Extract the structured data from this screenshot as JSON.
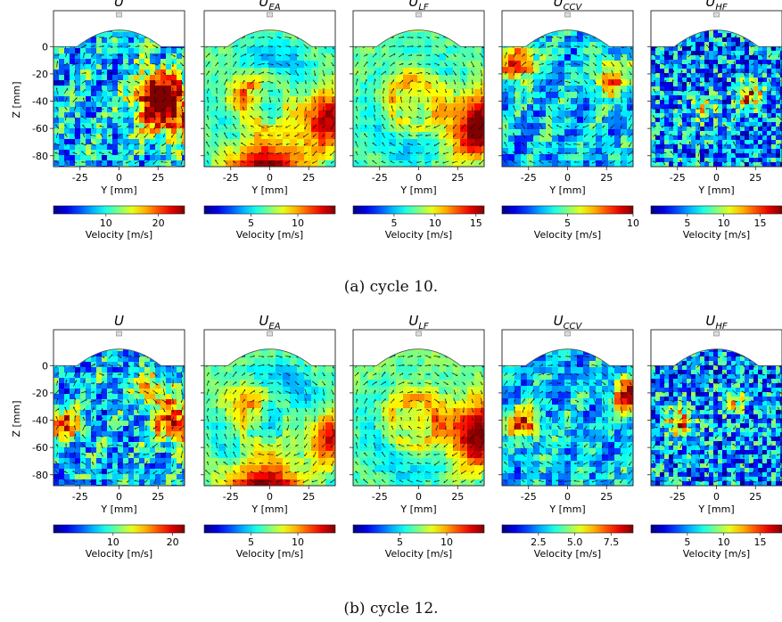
{
  "figure": {
    "caption_a": "(a) cycle 10.",
    "caption_b": "(b) cycle 12."
  },
  "chart_data": [
    {
      "type": "heatmap",
      "cycle": "10",
      "title_main": "U",
      "title_sub": "",
      "xlabel": "Y [mm]",
      "ylabel": "Z [mm]",
      "xticks": [
        -25,
        0,
        25
      ],
      "yticks": [
        0,
        -20,
        -40,
        -60,
        -80
      ],
      "xlim": [
        -42,
        42
      ],
      "ylim": [
        -88,
        10
      ],
      "colorbar_label": "Velocity [m/s]",
      "colorbar_ticks": [
        "10",
        "20"
      ],
      "colorbar_range": [
        0,
        25
      ],
      "pattern": "turbulent",
      "hotspots": [
        [
          30,
          -45,
          14,
          1.0
        ],
        [
          22,
          -30,
          10,
          0.8
        ]
      ]
    },
    {
      "type": "heatmap",
      "cycle": "10",
      "title_main": "U",
      "title_sub": "EA",
      "xlabel": "Y [mm]",
      "ylabel": "",
      "xticks": [
        -25,
        0,
        25
      ],
      "yticks": [
        0,
        -20,
        -40,
        -60,
        -80
      ],
      "xlim": [
        -42,
        42
      ],
      "ylim": [
        -88,
        10
      ],
      "colorbar_label": "Velocity [m/s]",
      "colorbar_ticks": [
        "5",
        "10"
      ],
      "colorbar_range": [
        0,
        14
      ],
      "pattern": "smooth",
      "hotspots": [
        [
          -5,
          -84,
          16,
          1.0
        ],
        [
          32,
          -50,
          14,
          0.9
        ],
        [
          -20,
          -30,
          12,
          0.6
        ]
      ]
    },
    {
      "type": "heatmap",
      "cycle": "10",
      "title_main": "U",
      "title_sub": "LF",
      "xlabel": "Y [mm]",
      "ylabel": "",
      "xticks": [
        -25,
        0,
        25
      ],
      "yticks": [
        0,
        -20,
        -40,
        -60,
        -80
      ],
      "xlim": [
        -42,
        42
      ],
      "ylim": [
        -88,
        10
      ],
      "colorbar_label": "Velocity [m/s]",
      "colorbar_ticks": [
        "5",
        "10",
        "15"
      ],
      "colorbar_range": [
        0,
        16
      ],
      "pattern": "smooth",
      "hotspots": [
        [
          35,
          -55,
          16,
          1.0
        ],
        [
          -10,
          -30,
          18,
          0.5
        ]
      ]
    },
    {
      "type": "heatmap",
      "cycle": "10",
      "title_main": "U",
      "title_sub": "CCV",
      "xlabel": "Y [mm]",
      "ylabel": "",
      "xticks": [
        -25,
        0,
        25
      ],
      "yticks": [
        0,
        -20,
        -40,
        -60,
        -80
      ],
      "xlim": [
        -42,
        42
      ],
      "ylim": [
        -88,
        10
      ],
      "colorbar_label": "Velocity [m/s]",
      "colorbar_ticks": [
        "5",
        "10"
      ],
      "colorbar_range": [
        0,
        10
      ],
      "pattern": "mixed",
      "hotspots": [
        [
          -35,
          -10,
          8,
          1.0
        ],
        [
          25,
          -20,
          8,
          0.7
        ]
      ]
    },
    {
      "type": "heatmap",
      "cycle": "10",
      "title_main": "U",
      "title_sub": "HF",
      "xlabel": "Y [mm]",
      "ylabel": "",
      "xticks": [
        -25,
        0,
        25
      ],
      "yticks": [
        0,
        -20,
        -40,
        -60,
        -80
      ],
      "xlim": [
        -42,
        42
      ],
      "ylim": [
        -88,
        10
      ],
      "colorbar_label": "Velocity [m/s]",
      "colorbar_ticks": [
        "5",
        "10",
        "15"
      ],
      "colorbar_range": [
        0,
        18
      ],
      "pattern": "noise",
      "hotspots": [
        [
          20,
          -35,
          6,
          0.9
        ],
        [
          -10,
          -45,
          5,
          0.6
        ]
      ]
    },
    {
      "type": "heatmap",
      "cycle": "12",
      "title_main": "U",
      "title_sub": "",
      "xlabel": "Y [mm]",
      "ylabel": "Z [mm]",
      "xticks": [
        -25,
        0,
        25
      ],
      "yticks": [
        0,
        -20,
        -40,
        -60,
        -80
      ],
      "xlim": [
        -42,
        42
      ],
      "ylim": [
        -88,
        10
      ],
      "colorbar_label": "Velocity [m/s]",
      "colorbar_ticks": [
        "10",
        "20"
      ],
      "colorbar_range": [
        0,
        22
      ],
      "pattern": "turbulent",
      "hotspots": [
        [
          35,
          -40,
          10,
          1.0
        ],
        [
          -38,
          -40,
          8,
          0.8
        ],
        [
          20,
          -15,
          8,
          0.6
        ]
      ]
    },
    {
      "type": "heatmap",
      "cycle": "12",
      "title_main": "U",
      "title_sub": "EA",
      "xlabel": "Y [mm]",
      "ylabel": "",
      "xticks": [
        -25,
        0,
        25
      ],
      "yticks": [
        0,
        -20,
        -40,
        -60,
        -80
      ],
      "xlim": [
        -42,
        42
      ],
      "ylim": [
        -88,
        10
      ],
      "colorbar_label": "Velocity [m/s]",
      "colorbar_ticks": [
        "5",
        "10"
      ],
      "colorbar_range": [
        0,
        14
      ],
      "pattern": "smooth",
      "hotspots": [
        [
          -5,
          -85,
          16,
          1.0
        ],
        [
          35,
          -50,
          12,
          0.8
        ],
        [
          -20,
          -25,
          12,
          0.6
        ]
      ]
    },
    {
      "type": "heatmap",
      "cycle": "12",
      "title_main": "U",
      "title_sub": "LF",
      "xlabel": "Y [mm]",
      "ylabel": "",
      "xticks": [
        -25,
        0,
        25
      ],
      "yticks": [
        0,
        -20,
        -40,
        -60,
        -80
      ],
      "xlim": [
        -42,
        42
      ],
      "ylim": [
        -88,
        10
      ],
      "colorbar_label": "Velocity [m/s]",
      "colorbar_ticks": [
        "5",
        "10"
      ],
      "colorbar_range": [
        0,
        14
      ],
      "pattern": "smooth",
      "hotspots": [
        [
          35,
          -48,
          15,
          1.0
        ],
        [
          -5,
          -30,
          20,
          0.5
        ]
      ]
    },
    {
      "type": "heatmap",
      "cycle": "12",
      "title_main": "U",
      "title_sub": "CCV",
      "xlabel": "Y [mm]",
      "ylabel": "",
      "xticks": [
        -25,
        0,
        25
      ],
      "yticks": [
        0,
        -20,
        -40,
        -60,
        -80
      ],
      "xlim": [
        -42,
        42
      ],
      "ylim": [
        -88,
        10
      ],
      "colorbar_label": "Velocity [m/s]",
      "colorbar_ticks": [
        "2.5",
        "5.0",
        "7.5"
      ],
      "colorbar_range": [
        0,
        9
      ],
      "pattern": "mixed",
      "hotspots": [
        [
          38,
          -20,
          8,
          1.0
        ],
        [
          -30,
          -40,
          8,
          0.8
        ]
      ]
    },
    {
      "type": "heatmap",
      "cycle": "12",
      "title_main": "U",
      "title_sub": "HF",
      "xlabel": "Y [mm]",
      "ylabel": "",
      "xticks": [
        -25,
        0,
        25
      ],
      "yticks": [
        0,
        -20,
        -40,
        -60,
        -80
      ],
      "xlim": [
        -42,
        42
      ],
      "ylim": [
        -88,
        10
      ],
      "colorbar_label": "Velocity [m/s]",
      "colorbar_ticks": [
        "5",
        "10",
        "15"
      ],
      "colorbar_range": [
        0,
        18
      ],
      "pattern": "noise",
      "hotspots": [
        [
          -25,
          -40,
          6,
          0.9
        ],
        [
          10,
          -25,
          5,
          0.6
        ]
      ]
    }
  ]
}
